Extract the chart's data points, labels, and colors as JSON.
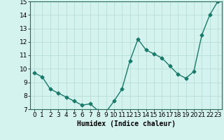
{
  "x": [
    0,
    1,
    2,
    3,
    4,
    5,
    6,
    7,
    8,
    9,
    10,
    11,
    12,
    13,
    14,
    15,
    16,
    17,
    18,
    19,
    20,
    21,
    22,
    23
  ],
  "y": [
    9.7,
    9.4,
    8.5,
    8.2,
    7.9,
    7.6,
    7.3,
    7.4,
    6.9,
    6.8,
    7.6,
    8.5,
    10.6,
    12.2,
    11.4,
    11.1,
    10.8,
    10.2,
    9.6,
    9.3,
    9.8,
    12.5,
    14.0,
    15.0
  ],
  "line_color": "#1a7a6a",
  "marker": "D",
  "marker_size": 2.5,
  "bg_color": "#d4f2ee",
  "grid_color": "#b8ddd9",
  "xlabel": "Humidex (Indice chaleur)",
  "ylim": [
    7,
    15
  ],
  "xlim": [
    -0.5,
    23.5
  ],
  "yticks": [
    7,
    8,
    9,
    10,
    11,
    12,
    13,
    14,
    15
  ],
  "xticks": [
    0,
    1,
    2,
    3,
    4,
    5,
    6,
    7,
    8,
    9,
    10,
    11,
    12,
    13,
    14,
    15,
    16,
    17,
    18,
    19,
    20,
    21,
    22,
    23
  ],
  "xlabel_fontsize": 7,
  "tick_fontsize": 6.5,
  "line_width": 1.0
}
